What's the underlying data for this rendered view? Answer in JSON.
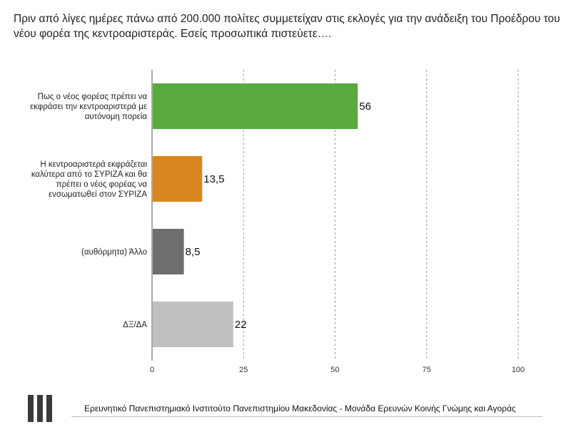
{
  "title": "Πριν από λίγες ημέρες πάνω από 200.000 πολίτες συμμετείχαν στις εκλογές για την ανάδειξη του Προέδρου του νέου φορέα της κεντροαριστεράς. Εσείς προσωπικά πιστεύετε….",
  "footer": {
    "text": "Ερευνητικό Πανεπιστημιακό Ινστιτούτο Πανεπιστημίου Μακεδονίας - Μονάδα Ερευνών Κοινής Γνώμης και Αγοράς",
    "logo_icon": "university-columns-logo"
  },
  "chart_data": {
    "type": "bar",
    "orientation": "horizontal",
    "categories": [
      [
        "Πως ο νέος φορέας πρέπει να",
        "εκφράσει την κεντροαριστερά με",
        "αυτόνομη πορεία"
      ],
      [
        "Η κεντροαριστερά εκφράζεται",
        "καλύτερα από το ΣΥΡΙΖΑ και θα",
        "πρέπει ο νέος φορέας να",
        "ενσωματωθεί στον ΣΥΡΙΖΑ"
      ],
      [
        "(αυθόρμητα) Άλλο"
      ],
      [
        "ΔΞ/ΔΑ"
      ]
    ],
    "values": [
      56,
      13.5,
      8.5,
      22
    ],
    "value_labels": [
      "56",
      "13,5",
      "8,5",
      "22"
    ],
    "colors": [
      "#5aaa3f",
      "#d9871e",
      "#6c6f6e",
      "#bec1c0"
    ],
    "xlim": [
      0,
      100
    ],
    "xticks": [
      0,
      25,
      50,
      75,
      100
    ],
    "grid": "vertical dashed",
    "legend": "none"
  }
}
